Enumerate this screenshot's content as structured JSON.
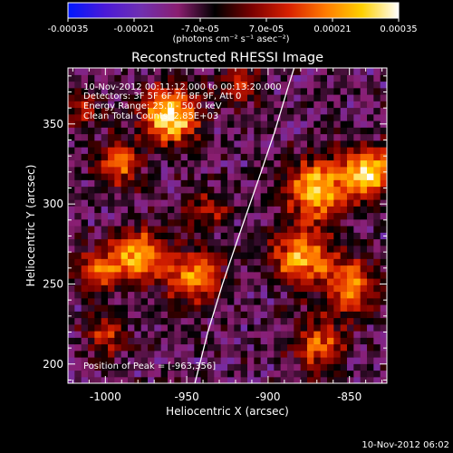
{
  "colorbar": {
    "ticks": [
      "-0.00035",
      "-0.00021",
      "-7.0e-05",
      "7.0e-05",
      "0.00021",
      "0.00035"
    ],
    "tick_values": [
      -0.00035,
      -0.00021,
      -7e-05,
      7e-05,
      0.00021,
      0.00035
    ],
    "units": "(photons cm⁻² s⁻¹ asec⁻²)",
    "colors": [
      "#0018ff",
      "#4a19d8",
      "#7030b0",
      "#8a1e70",
      "#000000",
      "#7a0000",
      "#d82000",
      "#ff7a00",
      "#ffd000",
      "#ffffff"
    ]
  },
  "chart_data": {
    "type": "heatmap",
    "title": "Reconstructed RHESSI Image",
    "xlabel": "Heliocentric X (arcsec)",
    "ylabel": "Heliocentric Y (arcsec)",
    "xlim": [
      -1023,
      -827
    ],
    "ylim": [
      188,
      385
    ],
    "xticks": [
      -1000,
      -950,
      -900,
      -850
    ],
    "yticks": [
      200,
      250,
      300,
      350
    ],
    "value_range": [
      -0.00035,
      0.00035
    ],
    "annotations": [
      "10-Nov-2012 00:11:12.000 to 00:13:20.000",
      "Detectors: 3F 5F 6F 7F 8F 9F, Att 0",
      "Energy Range: 25.0 - 50.0 keV",
      "Clean    Total Counts: 2.85E+03"
    ],
    "peak_label": "Position of Peak = [-963,356]",
    "peak": [
      -963,
      356
    ],
    "limb_curve": [
      [
        -945,
        188
      ],
      [
        -937,
        220
      ],
      [
        -928,
        250
      ],
      [
        -918,
        280
      ],
      [
        -906,
        315
      ],
      [
        -896,
        345
      ],
      [
        -888,
        372
      ],
      [
        -884,
        385
      ]
    ],
    "hotspots": [
      {
        "x": -960,
        "y": 355,
        "amp": 1.0,
        "w": 12
      },
      {
        "x": -992,
        "y": 325,
        "amp": 0.6,
        "w": 10
      },
      {
        "x": -980,
        "y": 268,
        "amp": 0.8,
        "w": 12
      },
      {
        "x": -1005,
        "y": 258,
        "amp": 0.5,
        "w": 10
      },
      {
        "x": -945,
        "y": 255,
        "amp": 0.7,
        "w": 12
      },
      {
        "x": -1000,
        "y": 218,
        "amp": 0.5,
        "w": 9
      },
      {
        "x": -938,
        "y": 296,
        "amp": 0.4,
        "w": 9
      },
      {
        "x": -870,
        "y": 310,
        "amp": 0.9,
        "w": 13
      },
      {
        "x": -838,
        "y": 320,
        "amp": 0.9,
        "w": 11
      },
      {
        "x": -880,
        "y": 268,
        "amp": 0.8,
        "w": 12
      },
      {
        "x": -850,
        "y": 250,
        "amp": 0.7,
        "w": 12
      },
      {
        "x": -868,
        "y": 212,
        "amp": 0.6,
        "w": 11
      },
      {
        "x": -918,
        "y": 375,
        "amp": 0.45,
        "w": 9
      },
      {
        "x": -1015,
        "y": 360,
        "amp": 0.4,
        "w": 9
      }
    ]
  },
  "timestamp": "10-Nov-2012 06:02"
}
